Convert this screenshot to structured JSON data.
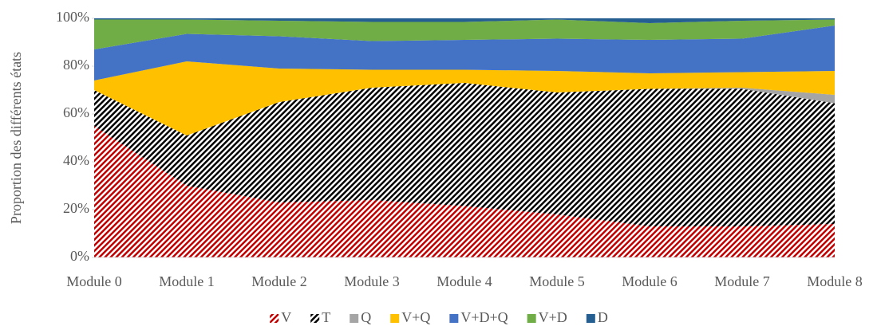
{
  "chart_data": {
    "type": "stacked_area",
    "y_label": "Proportion des différents états",
    "categories": [
      "Module 0",
      "Module 1",
      "Module 2",
      "Module 3",
      "Module 4",
      "Module 5",
      "Module 6",
      "Module 7",
      "Module 8"
    ],
    "series": [
      {
        "name": "V",
        "color": "#c00000",
        "pattern": "hatch",
        "values": [
          55,
          30,
          23,
          24,
          21.5,
          18,
          13,
          13,
          14
        ]
      },
      {
        "name": "T",
        "color": "#000000",
        "pattern": "hatch",
        "values": [
          15,
          21,
          42,
          47,
          51.5,
          51,
          57.5,
          57.5,
          50.5
        ]
      },
      {
        "name": "Q",
        "color": "#a5a5a5",
        "values": [
          0,
          0,
          0,
          0,
          0,
          0,
          0,
          0.5,
          3.5
        ]
      },
      {
        "name": "V+Q",
        "color": "#ffc000",
        "values": [
          4,
          31,
          14,
          7.5,
          5.5,
          9,
          6.5,
          6.5,
          10
        ]
      },
      {
        "name": "V+D+Q",
        "color": "#4472c4",
        "values": [
          13,
          11.5,
          13.5,
          12,
          12.5,
          13.5,
          14,
          14,
          19
        ]
      },
      {
        "name": "V+D",
        "color": "#70ad47",
        "values": [
          12.5,
          6,
          6.5,
          8,
          7.5,
          8,
          7,
          7.5,
          2.5
        ]
      },
      {
        "name": "D",
        "color": "#255e91",
        "values": [
          0.5,
          0.5,
          1,
          1.5,
          1.5,
          0.5,
          2,
          1,
          0.5
        ]
      }
    ],
    "ylim": [
      0,
      100
    ],
    "yticks": [
      {
        "value": 0,
        "label": "0%"
      },
      {
        "value": 20,
        "label": "20%"
      },
      {
        "value": 40,
        "label": "40%"
      },
      {
        "value": 60,
        "label": "60%"
      },
      {
        "value": 80,
        "label": "80%"
      },
      {
        "value": 100,
        "label": "100%"
      }
    ],
    "legend": "bottom"
  }
}
